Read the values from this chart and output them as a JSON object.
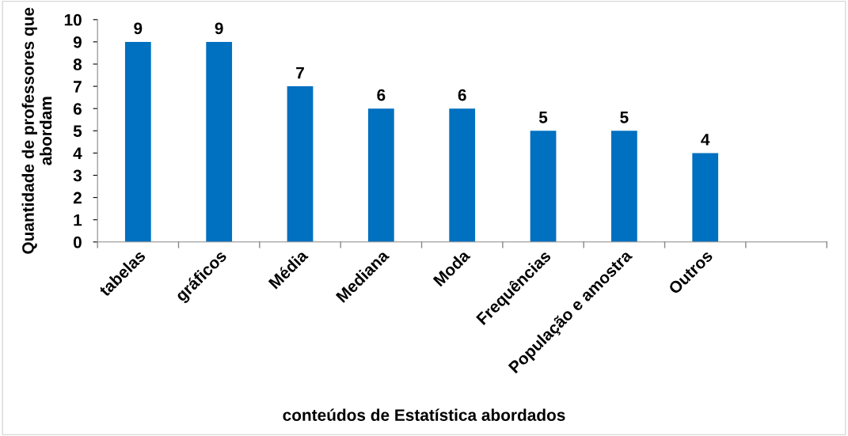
{
  "chart_data": {
    "type": "bar",
    "xlabel": "conteúdos de Estatística abordados",
    "ylabel": "Quantidade de professores que abordam",
    "categories": [
      "tabelas",
      "gráficos",
      "Média",
      "Mediana",
      "Moda",
      "Frequências",
      "População e amostra",
      "Outros",
      null
    ],
    "values": [
      9,
      9,
      7,
      6,
      6,
      5,
      5,
      4,
      null
    ],
    "color": "#0070c0",
    "data_labels": true,
    "grid": false,
    "legend": false,
    "ylim": [
      0,
      10
    ],
    "yticks": [
      0,
      1,
      2,
      3,
      4,
      5,
      6,
      7,
      8,
      9,
      10
    ]
  }
}
